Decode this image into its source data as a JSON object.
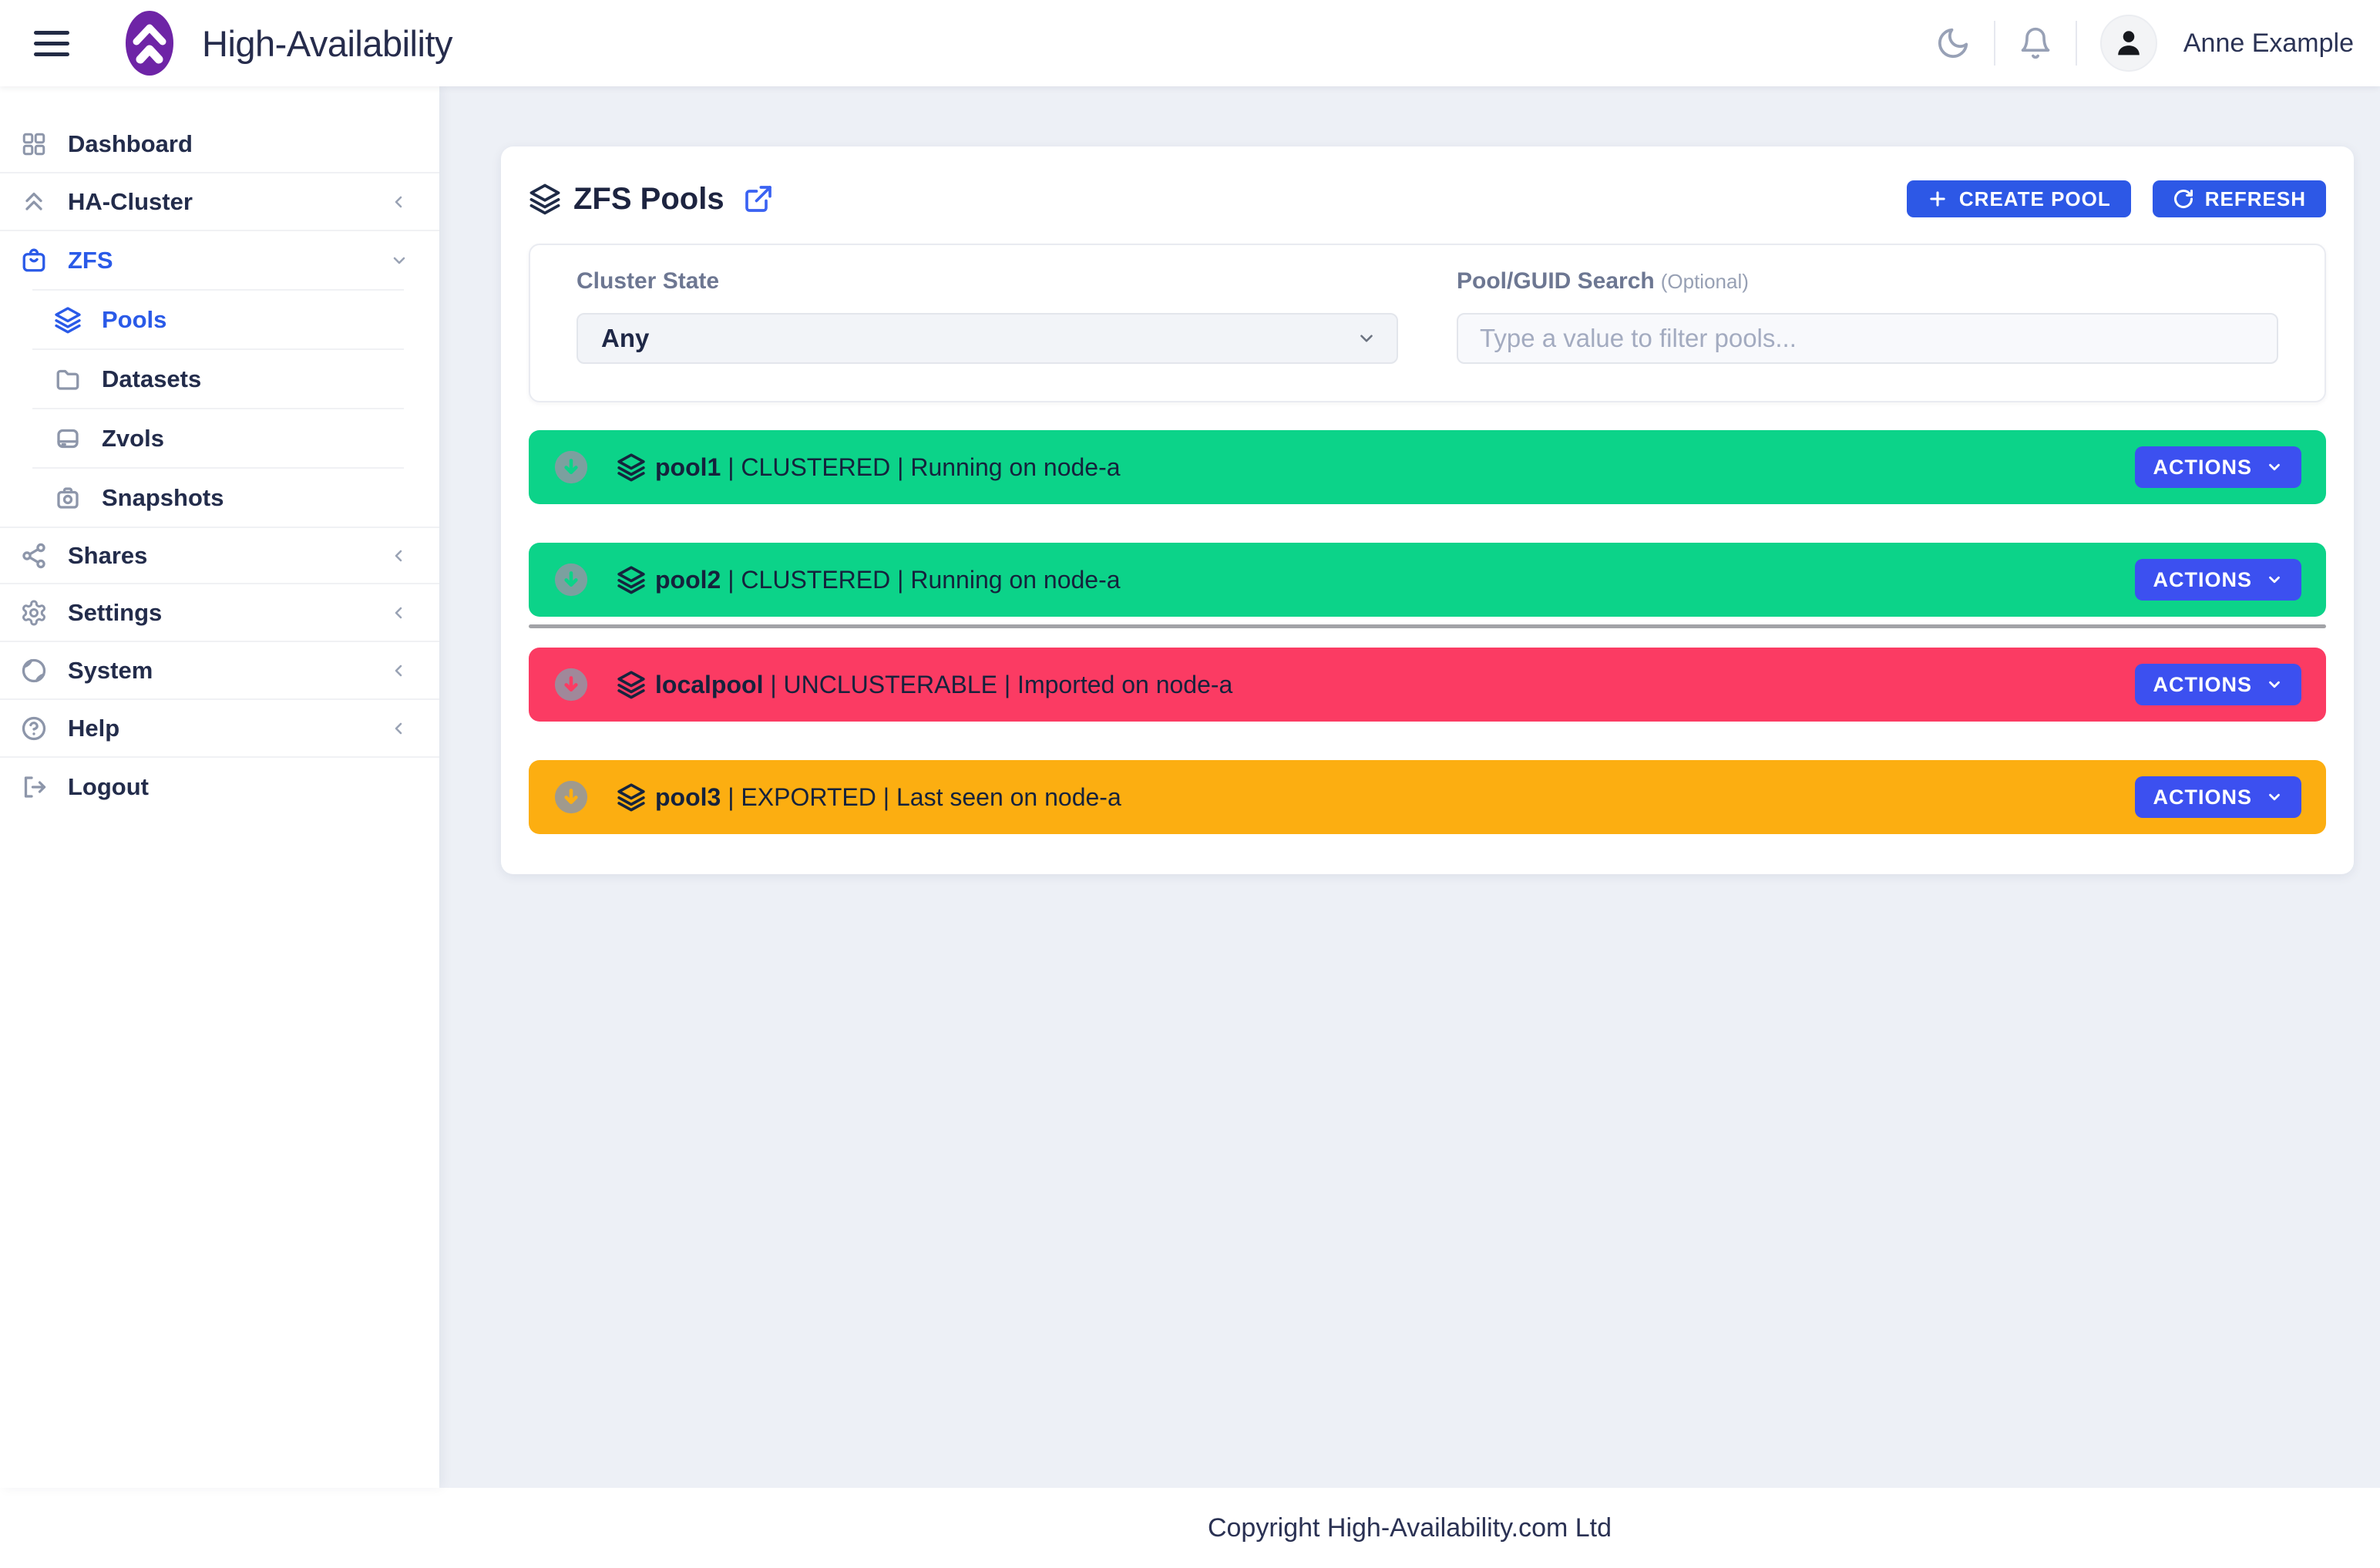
{
  "navbar": {
    "title": "High-Availability",
    "user_name": "Anne Example",
    "icons": [
      "menu-icon",
      "moon-icon",
      "bell-icon",
      "avatar"
    ]
  },
  "sidebar": {
    "items": [
      {
        "label": "Dashboard",
        "icon": "grid-icon",
        "active": false
      },
      {
        "label": "HA-Cluster",
        "icon": "chevrons-up-icon",
        "collapsed": true
      },
      {
        "label": "ZFS",
        "icon": "bag-icon",
        "active": true,
        "expanded": true
      },
      {
        "label": "Shares",
        "icon": "share-icon",
        "collapsed": true
      },
      {
        "label": "Settings",
        "icon": "gear-icon",
        "collapsed": true
      },
      {
        "label": "System",
        "icon": "globe-icon",
        "collapsed": true
      },
      {
        "label": "Help",
        "icon": "help-circle-icon",
        "collapsed": true
      },
      {
        "label": "Logout",
        "icon": "logout-icon"
      }
    ],
    "zfs_children": [
      {
        "label": "Pools",
        "icon": "layers-icon",
        "active": true
      },
      {
        "label": "Datasets",
        "icon": "folder-icon",
        "active": false
      },
      {
        "label": "Zvols",
        "icon": "drive-icon",
        "active": false
      },
      {
        "label": "Snapshots",
        "icon": "camera-icon",
        "active": false
      }
    ]
  },
  "main": {
    "card_title": "ZFS Pools",
    "create_pool_label": "CREATE POOL",
    "refresh_label": "REFRESH",
    "actions_label": "ACTIONS",
    "filters": {
      "cluster_state_label": "Cluster State",
      "cluster_state_value": "Any",
      "search_label": "Pool/GUID Search",
      "search_label_suffix": "(Optional)",
      "search_placeholder": "Type a value to filter pools..."
    },
    "pools": [
      {
        "name": "pool1",
        "status": "CLUSTERED",
        "detail": "Running on node-a",
        "color": "#0cd389",
        "group": "clustered"
      },
      {
        "name": "pool2",
        "status": "CLUSTERED",
        "detail": "Running on node-a",
        "color": "#0cd389",
        "group": "clustered"
      },
      {
        "name": "localpool",
        "status": "UNCLUSTERABLE",
        "detail": "Imported on node-a",
        "color": "#fb3b63",
        "group": "other"
      },
      {
        "name": "pool3",
        "status": "EXPORTED",
        "detail": "Last seen on node-a",
        "color": "#fcae11",
        "group": "other"
      }
    ]
  },
  "footer": {
    "copyright": "Copyright High-Availability.com Ltd"
  },
  "colors": {
    "accent_blue": "#2d58e6",
    "actions_blue": "#3c50f0",
    "sidebar_active_blue": "#2a5ae8",
    "clustered_green": "#0cd389",
    "unclusterable_red": "#fb3b63",
    "exported_orange": "#fcae11",
    "logo_purple": "#6e24a6",
    "page_background": "#edf0f6",
    "group_divider_gray": "#a2a3a7"
  }
}
